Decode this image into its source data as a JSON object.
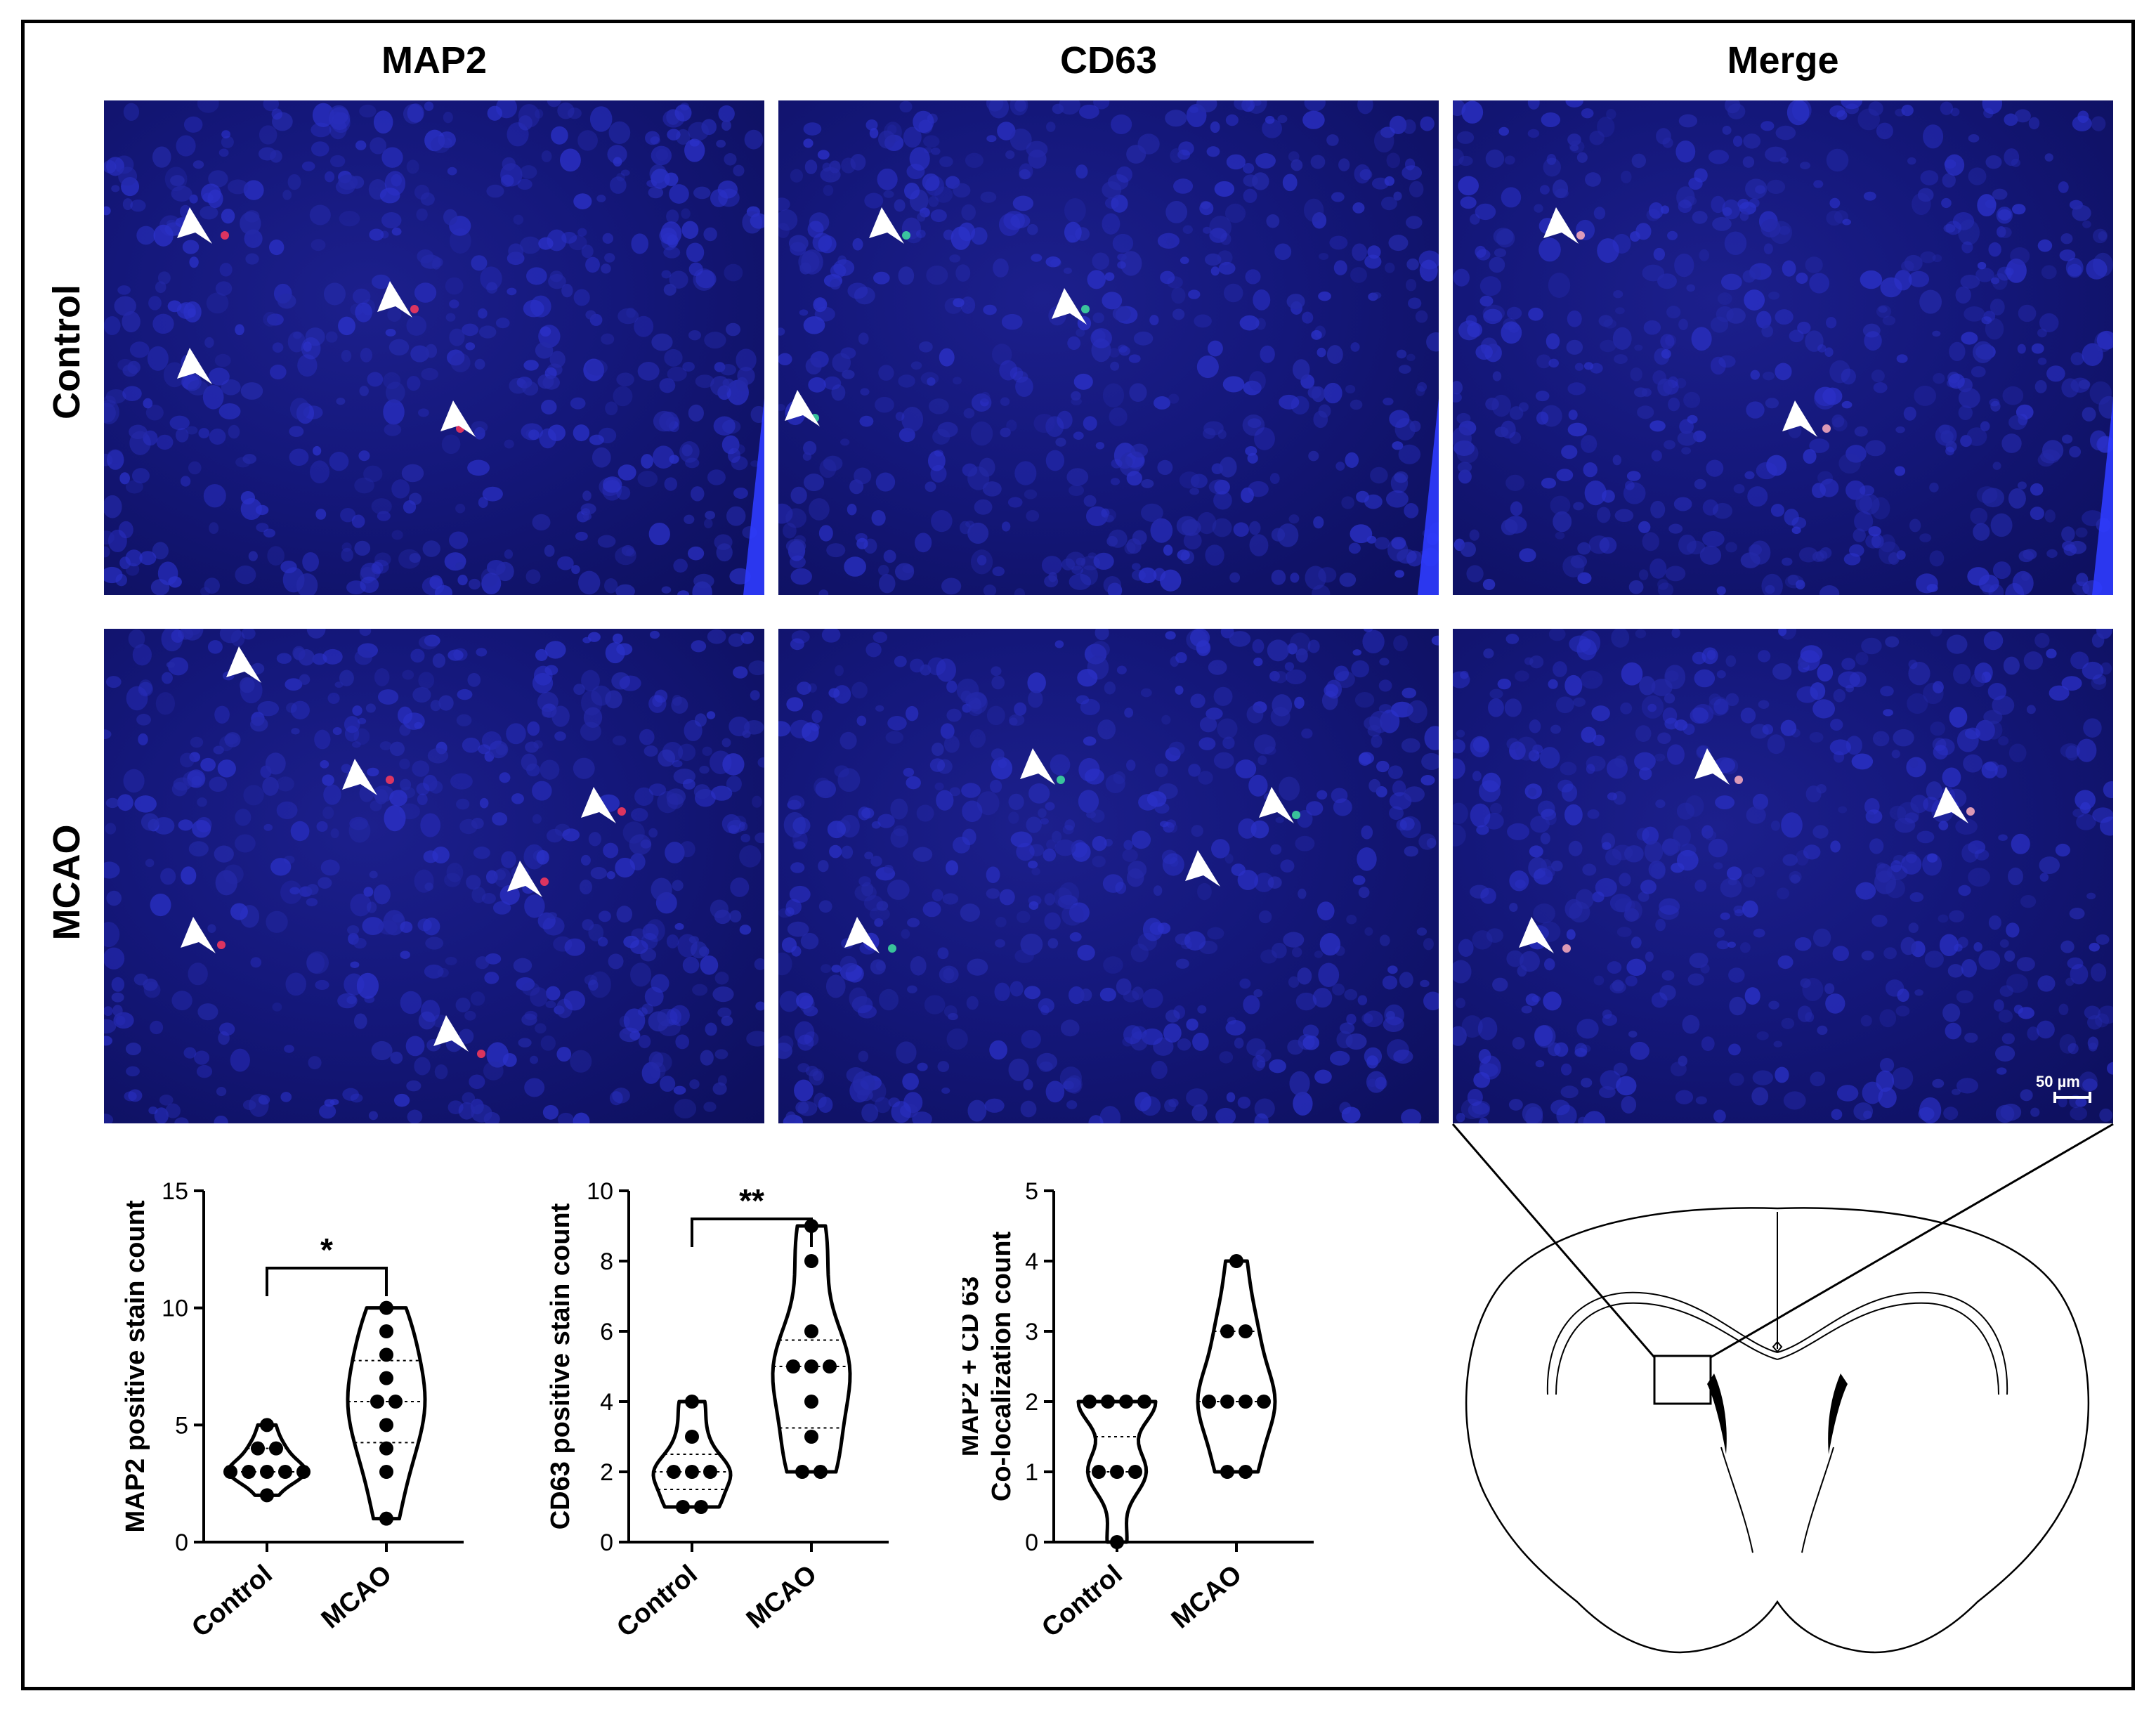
{
  "columns": {
    "map2": "MAP2",
    "cd63": "CD63",
    "merge": "Merge"
  },
  "rows": {
    "control": "Control",
    "mcao": "MCAO"
  },
  "scale_bar_label": "50 µm",
  "colors": {
    "nuclei_blue": "#1b1e88",
    "map2_red": "#ff3a5a",
    "cd63_green": "#3fe0a0",
    "merge_pink": "#ffb0c0",
    "arrow": "#ffffff"
  },
  "panels": {
    "control_map2": {
      "arrowheads": 4
    },
    "control_cd63": {
      "arrowheads": 3
    },
    "control_merge": {
      "arrowheads": 2
    },
    "mcao_map2": {
      "arrowheads": 6
    },
    "mcao_cd63": {
      "arrowheads": 4
    },
    "mcao_merge": {
      "arrowheads": 3
    }
  },
  "chart_data": [
    {
      "type": "violin",
      "categories": [
        "Control",
        "MCAO"
      ],
      "ylabel": "MAP2 positive stain count",
      "ylim": [
        0,
        15
      ],
      "yticks": [
        0,
        5,
        10,
        15
      ],
      "significance": "*",
      "series": [
        {
          "points": [
            2,
            3,
            3,
            3,
            3,
            3,
            4,
            4,
            5
          ]
        },
        {
          "points": [
            1,
            3,
            4,
            5,
            6,
            6,
            7,
            8,
            9,
            10
          ]
        }
      ]
    },
    {
      "type": "violin",
      "categories": [
        "Control",
        "MCAO"
      ],
      "ylabel": "CD63 positive stain count",
      "ylim": [
        0,
        10
      ],
      "yticks": [
        0,
        2,
        4,
        6,
        8,
        10
      ],
      "significance": "**",
      "series": [
        {
          "points": [
            1,
            1,
            2,
            2,
            2,
            3,
            4
          ]
        },
        {
          "points": [
            2,
            2,
            3,
            4,
            5,
            5,
            5,
            6,
            8,
            9
          ]
        }
      ]
    },
    {
      "type": "violin",
      "categories": [
        "Control",
        "MCAO"
      ],
      "ylabel": "MAP2 + CD 63\nCo-localization count",
      "ylim": [
        0,
        5
      ],
      "yticks": [
        0,
        1,
        2,
        3,
        4,
        5
      ],
      "significance": "",
      "series": [
        {
          "points": [
            0,
            1,
            1,
            1,
            2,
            2,
            2,
            2
          ]
        },
        {
          "points": [
            1,
            1,
            2,
            2,
            2,
            2,
            3,
            3,
            4
          ]
        }
      ]
    }
  ]
}
